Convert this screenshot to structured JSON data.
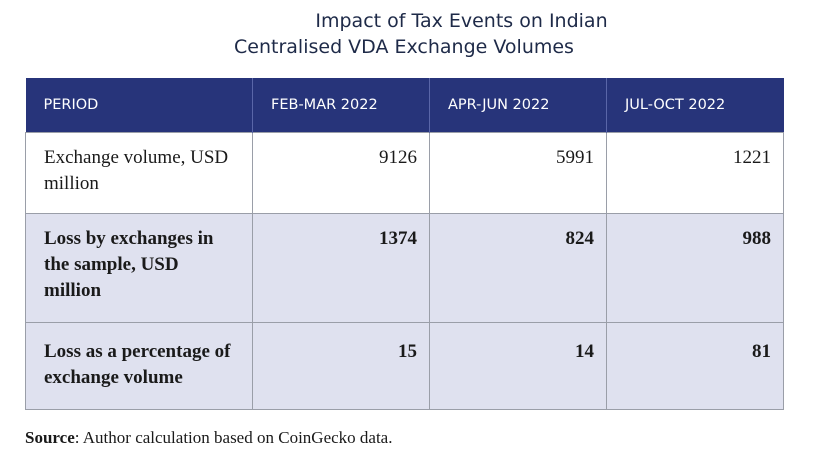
{
  "title": {
    "line1": "Impact of Tax Events on Indian",
    "line2": "Centralised VDA Exchange Volumes"
  },
  "table": {
    "headers": [
      "PERIOD",
      "FEB-MAR 2022",
      "APR-JUN 2022",
      "JUL-OCT 2022"
    ],
    "rows": [
      {
        "label": "Exchange volume, USD million",
        "values": [
          "9126",
          "5991",
          "1221"
        ]
      },
      {
        "label": "Loss by exchanges in the sample, USD million",
        "values": [
          "1374",
          "824",
          "988"
        ]
      },
      {
        "label": "Loss as a percentage of exchange volume",
        "values": [
          "15",
          "14",
          "81"
        ]
      }
    ],
    "colors": {
      "header_bg": "#27347a",
      "shaded_row_bg": "#dfe1ef"
    }
  },
  "source": {
    "label": "Source",
    "text": ": Author calculation based on CoinGecko data."
  }
}
